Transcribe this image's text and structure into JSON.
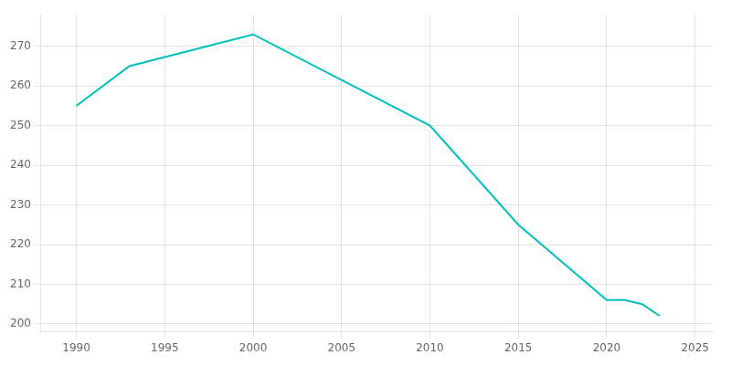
{
  "chart_data": {
    "type": "line",
    "x": [
      1990,
      1993,
      2000,
      2010,
      2015,
      2020,
      2021,
      2022,
      2023
    ],
    "values": [
      255,
      265,
      273,
      250,
      225,
      206,
      206,
      205,
      202
    ],
    "color": "#00BFBF",
    "xlim": [
      1988,
      2026
    ],
    "xticks": [
      1990,
      1995,
      2000,
      2005,
      2010,
      2015,
      2020,
      2025
    ],
    "ylim": [
      198,
      278
    ],
    "yticks": [
      200,
      210,
      220,
      230,
      240,
      250,
      260,
      270
    ],
    "grid": true
  }
}
